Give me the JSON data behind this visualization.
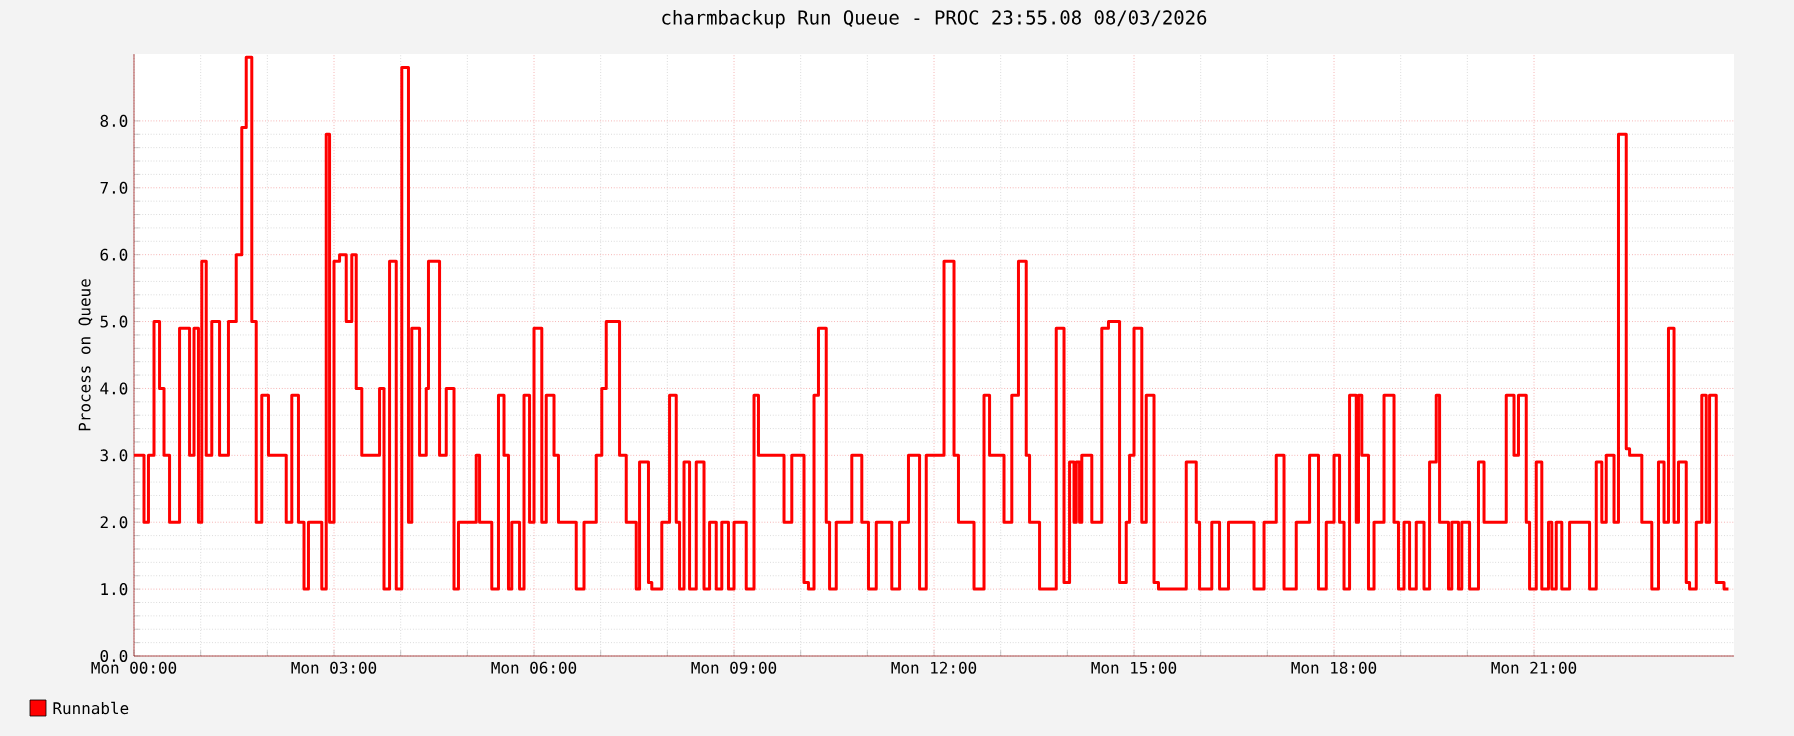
{
  "chart_data": {
    "type": "step",
    "title": "charmbackup Run Queue - PROC 23:55.08 08/03/2026",
    "ylabel": "Process on Queue",
    "xlim": [
      "2026-08-03T00:00",
      "2026-08-04T00:00"
    ],
    "ylim": [
      0,
      9
    ],
    "xticks": [
      {
        "value": "2026-08-03T00:00",
        "label": "Mon 00:00"
      },
      {
        "value": "2026-08-03T03:00",
        "label": "Mon 03:00"
      },
      {
        "value": "2026-08-03T06:00",
        "label": "Mon 06:00"
      },
      {
        "value": "2026-08-03T09:00",
        "label": "Mon 09:00"
      },
      {
        "value": "2026-08-03T12:00",
        "label": "Mon 12:00"
      },
      {
        "value": "2026-08-03T15:00",
        "label": "Mon 15:00"
      },
      {
        "value": "2026-08-03T18:00",
        "label": "Mon 18:00"
      },
      {
        "value": "2026-08-03T21:00",
        "label": "Mon 21:00"
      }
    ],
    "yticks": [
      {
        "value": 0,
        "label": "0.0"
      },
      {
        "value": 1,
        "label": "1.0"
      },
      {
        "value": 2,
        "label": "2.0"
      },
      {
        "value": 3,
        "label": "3.0"
      },
      {
        "value": 4,
        "label": "4.0"
      },
      {
        "value": 5,
        "label": "5.0"
      },
      {
        "value": 6,
        "label": "6.0"
      },
      {
        "value": 7,
        "label": "7.0"
      },
      {
        "value": 8,
        "label": "8.0"
      }
    ],
    "grid": true,
    "legend": "bottom left",
    "series": [
      {
        "name": "Runnable",
        "color": "#ff0000",
        "x": [
          "2026-08-03T00:00",
          "2026-08-03T00:09",
          "2026-08-03T00:13",
          "2026-08-03T00:18",
          "2026-08-03T00:23",
          "2026-08-03T00:27",
          "2026-08-03T00:32",
          "2026-08-03T00:41",
          "2026-08-03T00:50",
          "2026-08-03T00:54",
          "2026-08-03T00:58",
          "2026-08-03T01:01",
          "2026-08-03T01:05",
          "2026-08-03T01:10",
          "2026-08-03T01:17",
          "2026-08-03T01:25",
          "2026-08-03T01:32",
          "2026-08-03T01:37",
          "2026-08-03T01:41",
          "2026-08-03T01:46",
          "2026-08-03T01:50",
          "2026-08-03T01:55",
          "2026-08-03T02:01",
          "2026-08-03T02:17",
          "2026-08-03T02:22",
          "2026-08-03T02:28",
          "2026-08-03T02:33",
          "2026-08-03T02:37",
          "2026-08-03T02:49",
          "2026-08-03T02:53",
          "2026-08-03T02:56",
          "2026-08-03T03:00",
          "2026-08-03T03:05",
          "2026-08-03T03:11",
          "2026-08-03T03:16",
          "2026-08-03T03:20",
          "2026-08-03T03:25",
          "2026-08-03T03:41",
          "2026-08-03T03:45",
          "2026-08-03T03:50",
          "2026-08-03T03:56",
          "2026-08-03T04:01",
          "2026-08-03T04:07",
          "2026-08-03T04:10",
          "2026-08-03T04:17",
          "2026-08-03T04:23",
          "2026-08-03T04:25",
          "2026-08-03T04:35",
          "2026-08-03T04:41",
          "2026-08-03T04:48",
          "2026-08-03T04:52",
          "2026-08-03T05:08",
          "2026-08-03T05:11",
          "2026-08-03T05:22",
          "2026-08-03T05:28",
          "2026-08-03T05:33",
          "2026-08-03T05:37",
          "2026-08-03T05:40",
          "2026-08-03T05:47",
          "2026-08-03T05:51",
          "2026-08-03T05:56",
          "2026-08-03T06:00",
          "2026-08-03T06:07",
          "2026-08-03T06:11",
          "2026-08-03T06:18",
          "2026-08-03T06:22",
          "2026-08-03T06:38",
          "2026-08-03T06:45",
          "2026-08-03T06:56",
          "2026-08-03T07:01",
          "2026-08-03T07:05",
          "2026-08-03T07:17",
          "2026-08-03T07:23",
          "2026-08-03T07:32",
          "2026-08-03T07:35",
          "2026-08-03T07:43",
          "2026-08-03T07:46",
          "2026-08-03T07:55",
          "2026-08-03T08:02",
          "2026-08-03T08:08",
          "2026-08-03T08:11",
          "2026-08-03T08:15",
          "2026-08-03T08:20",
          "2026-08-03T08:26",
          "2026-08-03T08:33",
          "2026-08-03T08:38",
          "2026-08-03T08:44",
          "2026-08-03T08:49",
          "2026-08-03T08:55",
          "2026-08-03T09:00",
          "2026-08-03T09:11",
          "2026-08-03T09:18",
          "2026-08-03T09:22",
          "2026-08-03T09:45",
          "2026-08-03T09:52",
          "2026-08-03T10:03",
          "2026-08-03T10:07",
          "2026-08-03T10:12",
          "2026-08-03T10:16",
          "2026-08-03T10:23",
          "2026-08-03T10:26",
          "2026-08-03T10:32",
          "2026-08-03T10:46",
          "2026-08-03T10:55",
          "2026-08-03T11:01",
          "2026-08-03T11:08",
          "2026-08-03T11:22",
          "2026-08-03T11:29",
          "2026-08-03T11:37",
          "2026-08-03T11:47",
          "2026-08-03T11:53",
          "2026-08-03T12:09",
          "2026-08-03T12:18",
          "2026-08-03T12:22",
          "2026-08-03T12:36",
          "2026-08-03T12:45",
          "2026-08-03T12:50",
          "2026-08-03T13:03",
          "2026-08-03T13:10",
          "2026-08-03T13:16",
          "2026-08-03T13:23",
          "2026-08-03T13:26",
          "2026-08-03T13:35",
          "2026-08-03T13:50",
          "2026-08-03T13:57",
          "2026-08-03T14:02",
          "2026-08-03T14:06",
          "2026-08-03T14:08",
          "2026-08-03T14:11",
          "2026-08-03T14:13",
          "2026-08-03T14:22",
          "2026-08-03T14:31",
          "2026-08-03T14:37",
          "2026-08-03T14:47",
          "2026-08-03T14:53",
          "2026-08-03T14:56",
          "2026-08-03T15:00",
          "2026-08-03T15:07",
          "2026-08-03T15:11",
          "2026-08-03T15:18",
          "2026-08-03T15:22",
          "2026-08-03T15:47",
          "2026-08-03T15:56",
          "2026-08-03T15:59",
          "2026-08-03T16:10",
          "2026-08-03T16:17",
          "2026-08-03T16:25",
          "2026-08-03T16:48",
          "2026-08-03T16:57",
          "2026-08-03T17:08",
          "2026-08-03T17:15",
          "2026-08-03T17:26",
          "2026-08-03T17:38",
          "2026-08-03T17:46",
          "2026-08-03T17:53",
          "2026-08-03T18:00",
          "2026-08-03T18:05",
          "2026-08-03T18:09",
          "2026-08-03T18:14",
          "2026-08-03T18:20",
          "2026-08-03T18:22",
          "2026-08-03T18:25",
          "2026-08-03T18:31",
          "2026-08-03T18:36",
          "2026-08-03T18:45",
          "2026-08-03T18:54",
          "2026-08-03T18:58",
          "2026-08-03T19:03",
          "2026-08-03T19:08",
          "2026-08-03T19:14",
          "2026-08-03T19:21",
          "2026-08-03T19:26",
          "2026-08-03T19:32",
          "2026-08-03T19:35",
          "2026-08-03T19:43",
          "2026-08-03T19:46",
          "2026-08-03T19:52",
          "2026-08-03T19:55",
          "2026-08-03T20:02",
          "2026-08-03T20:10",
          "2026-08-03T20:15",
          "2026-08-03T20:35",
          "2026-08-03T20:42",
          "2026-08-03T20:46",
          "2026-08-03T20:53",
          "2026-08-03T20:56",
          "2026-08-03T21:02",
          "2026-08-03T21:07",
          "2026-08-03T21:13",
          "2026-08-03T21:16",
          "2026-08-03T21:20",
          "2026-08-03T21:25",
          "2026-08-03T21:32",
          "2026-08-03T21:50",
          "2026-08-03T21:56",
          "2026-08-03T22:01",
          "2026-08-03T22:05",
          "2026-08-03T22:12",
          "2026-08-03T22:16",
          "2026-08-03T22:23",
          "2026-08-03T22:26",
          "2026-08-03T22:37",
          "2026-08-03T22:46",
          "2026-08-03T22:52",
          "2026-08-03T22:57",
          "2026-08-03T23:01",
          "2026-08-03T23:06",
          "2026-08-03T23:10",
          "2026-08-03T23:17",
          "2026-08-03T23:20",
          "2026-08-03T23:26",
          "2026-08-03T23:31",
          "2026-08-03T23:35",
          "2026-08-03T23:38",
          "2026-08-03T23:44",
          "2026-08-03T23:51",
          "2026-08-03T23:55"
        ],
        "values": [
          3,
          2,
          3,
          5,
          4,
          3,
          2,
          4.9,
          3,
          4.9,
          2,
          5.9,
          3,
          5,
          3,
          5,
          6,
          7.9,
          8.95,
          5,
          2,
          3.9,
          3,
          2,
          3.9,
          2,
          1,
          2,
          1,
          7.8,
          2,
          5.9,
          6,
          5,
          6,
          4,
          3,
          4,
          1,
          5.9,
          1,
          8.8,
          2,
          4.9,
          3,
          4,
          5.9,
          3,
          4,
          1,
          2,
          3,
          2,
          1,
          3.9,
          3,
          1,
          2,
          1,
          3.9,
          2,
          4.9,
          2,
          3.9,
          3,
          2,
          1,
          2,
          3,
          4,
          5,
          3,
          2,
          1,
          2.9,
          1.1,
          1,
          2,
          3.9,
          2,
          1,
          2.9,
          1,
          2.9,
          1,
          2,
          1,
          2,
          1,
          2,
          1,
          3.9,
          3,
          2,
          3,
          1.1,
          1,
          3.9,
          4.9,
          2,
          1,
          2,
          3,
          2,
          1,
          2,
          1,
          2,
          3,
          1,
          3,
          5.9,
          3,
          2,
          1,
          3.9,
          3,
          2,
          3.9,
          5.9,
          3,
          2,
          1,
          4.9,
          1.1,
          2.9,
          2,
          2.9,
          2,
          3,
          2,
          4.9,
          5,
          1.1,
          2,
          3,
          4.9,
          2,
          3.9,
          1.1,
          1,
          2.9,
          2,
          1,
          2,
          1,
          2,
          1,
          2,
          3,
          1,
          2,
          3,
          1,
          2,
          3,
          2,
          1,
          3.9,
          2,
          3.9,
          3,
          1,
          2,
          3.9,
          2,
          1,
          2,
          1,
          2,
          1,
          2.9,
          3.9,
          2,
          1,
          2,
          1,
          2,
          1,
          2.9,
          2,
          3.9,
          3,
          3.9,
          2,
          1,
          2.9,
          1,
          2,
          1,
          2,
          1,
          2,
          1,
          2.9,
          2,
          3,
          2,
          7.8,
          3.1,
          3,
          2,
          1,
          2.9,
          2,
          4.9,
          2,
          2.9,
          1.1,
          1,
          2,
          3.9,
          2,
          3.9,
          1.1,
          1,
          1
        ]
      }
    ]
  }
}
